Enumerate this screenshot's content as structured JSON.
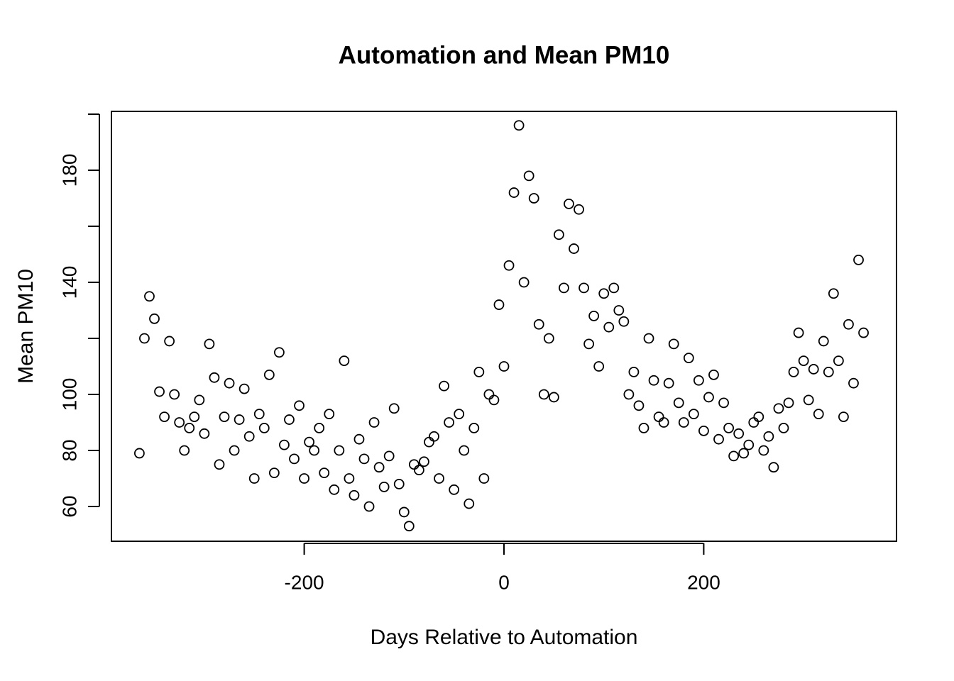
{
  "chart_data": {
    "type": "scatter",
    "title": "Automation and Mean PM10",
    "x_label": "Days Relative to Automation",
    "y_label": "Mean PM10",
    "color": "#000000",
    "xlim": [
      -393,
      393
    ],
    "ylim": [
      47.6,
      201
    ],
    "xticks": [
      -200,
      0,
      200
    ],
    "yticks": [
      60,
      80,
      100,
      {
        "value": 120,
        "label": null
      },
      140,
      {
        "value": 160,
        "label": null
      },
      180,
      {
        "value": 200,
        "label": null
      }
    ],
    "x": [
      -365,
      -360,
      -355,
      -350,
      -345,
      -340,
      -335,
      -330,
      -325,
      -320,
      -315,
      -310,
      -305,
      -300,
      -295,
      -290,
      -285,
      -280,
      -275,
      -270,
      -265,
      -260,
      -255,
      -250,
      -245,
      -240,
      -235,
      -230,
      -225,
      -220,
      -215,
      -210,
      -205,
      -200,
      -195,
      -190,
      -185,
      -180,
      -175,
      -170,
      -165,
      -160,
      -155,
      -150,
      -145,
      -140,
      -135,
      -130,
      -125,
      -120,
      -115,
      -110,
      -105,
      -100,
      -95,
      -90,
      -85,
      -80,
      -75,
      -70,
      -65,
      -60,
      -55,
      -50,
      -45,
      -40,
      -35,
      -30,
      -25,
      -20,
      -15,
      -10,
      -5,
      0,
      5,
      10,
      15,
      20,
      25,
      30,
      35,
      40,
      45,
      50,
      55,
      60,
      65,
      70,
      75,
      80,
      85,
      90,
      95,
      100,
      105,
      110,
      115,
      120,
      125,
      130,
      135,
      140,
      145,
      150,
      155,
      160,
      165,
      170,
      175,
      180,
      185,
      190,
      195,
      200,
      205,
      210,
      215,
      220,
      225,
      230,
      235,
      240,
      245,
      250,
      255,
      260,
      265,
      270,
      275,
      280,
      285,
      290,
      295,
      300,
      305,
      310,
      315,
      320,
      325,
      330,
      335,
      340,
      345,
      350,
      355,
      360
    ],
    "values": [
      79,
      120,
      135,
      127,
      101,
      92,
      119,
      100,
      90,
      80,
      88,
      92,
      98,
      86,
      118,
      106,
      75,
      92,
      104,
      80,
      91,
      102,
      85,
      70,
      93,
      88,
      107,
      72,
      115,
      82,
      91,
      77,
      96,
      70,
      83,
      80,
      88,
      72,
      93,
      66,
      80,
      112,
      70,
      64,
      84,
      77,
      60,
      90,
      74,
      67,
      78,
      95,
      68,
      58,
      53,
      75,
      73,
      76,
      83,
      85,
      70,
      103,
      90,
      66,
      93,
      80,
      61,
      88,
      108,
      70,
      100,
      98,
      132,
      110,
      146,
      172,
      196,
      140,
      178,
      170,
      125,
      100,
      120,
      99,
      157,
      138,
      168,
      152,
      166,
      138,
      118,
      128,
      110,
      136,
      124,
      138,
      130,
      126,
      100,
      108,
      96,
      88,
      120,
      105,
      92,
      90,
      104,
      118,
      97,
      90,
      113,
      93,
      105,
      87,
      99,
      107,
      84,
      97,
      88,
      78,
      86,
      79,
      82,
      90,
      92,
      80,
      85,
      74,
      95,
      88,
      97,
      108,
      122,
      112,
      98,
      109,
      93,
      119,
      108,
      136,
      112,
      92,
      125,
      104,
      148,
      122
    ]
  }
}
